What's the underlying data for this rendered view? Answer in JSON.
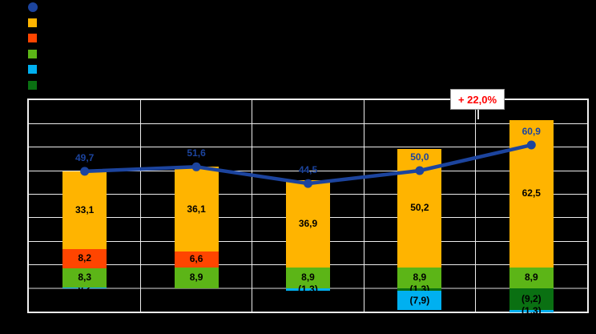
{
  "chart_data": {
    "type": "combo-stacked-bar-line",
    "title": "",
    "categories": [
      "",
      "",
      "",
      "",
      ""
    ],
    "value_axis": {
      "min": -10,
      "max": 80,
      "step": 10,
      "tick_labels_visible": false
    },
    "grid": true,
    "legend_position": "top-left",
    "negative_stack_order": [
      "dark-green",
      "cyan"
    ],
    "series": [
      {
        "key": "cyan",
        "color": "#00B0F0",
        "values": [
          0.2,
          0,
          -1.3,
          -7.9,
          -1.3
        ]
      },
      {
        "key": "light-green",
        "color": "#5CB517",
        "values": [
          8.3,
          8.9,
          8.9,
          8.9,
          8.9
        ]
      },
      {
        "key": "red-orange",
        "color": "#FF4500",
        "values": [
          8.2,
          6.6,
          0,
          0,
          0
        ]
      },
      {
        "key": "orange",
        "color": "#FFB400",
        "values": [
          33.1,
          36.1,
          36.9,
          50.2,
          62.5
        ]
      },
      {
        "key": "dark-green",
        "color": "#0A7012",
        "values": [
          0,
          0,
          0,
          -1.3,
          -9.2
        ]
      }
    ],
    "line": {
      "key": "total",
      "color": "#1C449E",
      "values": [
        49.7,
        51.6,
        44.5,
        50,
        60.9
      ]
    },
    "bar_value_labels": [
      [
        "0,2",
        "8,3",
        "8,2",
        "33,1"
      ],
      [
        "8,9",
        "6,6",
        "36,1"
      ],
      [
        "8,9",
        "36,9",
        "(1,3)"
      ],
      [
        "8,9",
        "50,2",
        "(1,3)",
        "(7,9)"
      ],
      [
        "8,9",
        "62,5",
        "(9,2)",
        "(1,3)"
      ]
    ],
    "line_value_labels": [
      "49,7",
      "51,6",
      "44,5",
      "50,0",
      "60,9"
    ],
    "annotation": {
      "text": "+ 22,0%",
      "color": "#FF0000"
    },
    "colors": {
      "background": "#000000",
      "gridline": "#EDEDED",
      "zero_axis": "#6E6E6E",
      "plot_border": "#F0F0F0",
      "label_text": "#000000"
    }
  },
  "legend": {
    "items": [
      {
        "key": "total-line",
        "shape": "circle",
        "color": "#1C449E",
        "label": ""
      },
      {
        "key": "orange",
        "shape": "square",
        "color": "#FFB400",
        "label": ""
      },
      {
        "key": "red-orange",
        "shape": "square",
        "color": "#FF4500",
        "label": ""
      },
      {
        "key": "light-green",
        "shape": "square",
        "color": "#5CB517",
        "label": ""
      },
      {
        "key": "cyan",
        "shape": "square",
        "color": "#00B0F0",
        "label": ""
      },
      {
        "key": "dark-green",
        "shape": "square",
        "color": "#0A7012",
        "label": ""
      }
    ]
  }
}
